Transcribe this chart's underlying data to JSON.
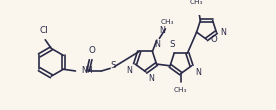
{
  "bg_color": "#faf6ee",
  "line_color": "#2a2a48",
  "lw": 1.2,
  "fs": 5.8,
  "figsize": [
    2.76,
    1.1
  ],
  "dpi": 100,
  "xlim": [
    0,
    276
  ],
  "ylim": [
    0,
    110
  ]
}
